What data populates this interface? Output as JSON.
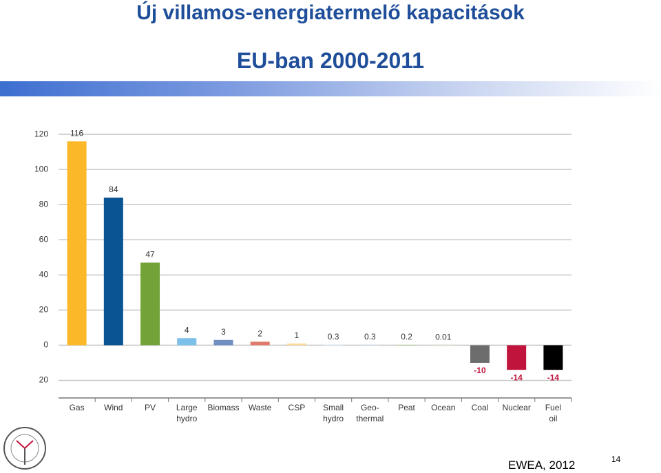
{
  "header": {
    "title": "Új villamos-energiatermelő kapacitások",
    "subtitle": "EU-ban 2000-2011"
  },
  "chart_data": {
    "type": "bar",
    "categories": [
      "Gas",
      "Wind",
      "PV",
      "Large\nhydro",
      "Biomass",
      "Waste",
      "CSP",
      "Small\nhydro",
      "Geo-\nthermal",
      "Peat",
      "Ocean",
      "Coal",
      "Nuclear",
      "Fuel\noil"
    ],
    "values": [
      116,
      84,
      47,
      4,
      3,
      2,
      1,
      0.3,
      0.3,
      0.2,
      0.01,
      -10,
      -14,
      -14
    ],
    "colors": [
      "#fbb829",
      "#0a5494",
      "#73a338",
      "#7cc0ea",
      "#6e8fc0",
      "#e07a6a",
      "#fcd79a",
      "#d7e8f5",
      "#cfd9ea",
      "#b7d69a",
      "#d9e8c8",
      "#6d6d6d",
      "#c0143c",
      "#000000"
    ],
    "ylim": [
      -30,
      122
    ],
    "yticks": [
      {
        "value": -20,
        "label": "20"
      },
      0,
      20,
      40,
      60,
      80,
      100,
      120
    ],
    "grid": true
  },
  "footer": {
    "source": "EWEA, 2012",
    "page": "14"
  }
}
